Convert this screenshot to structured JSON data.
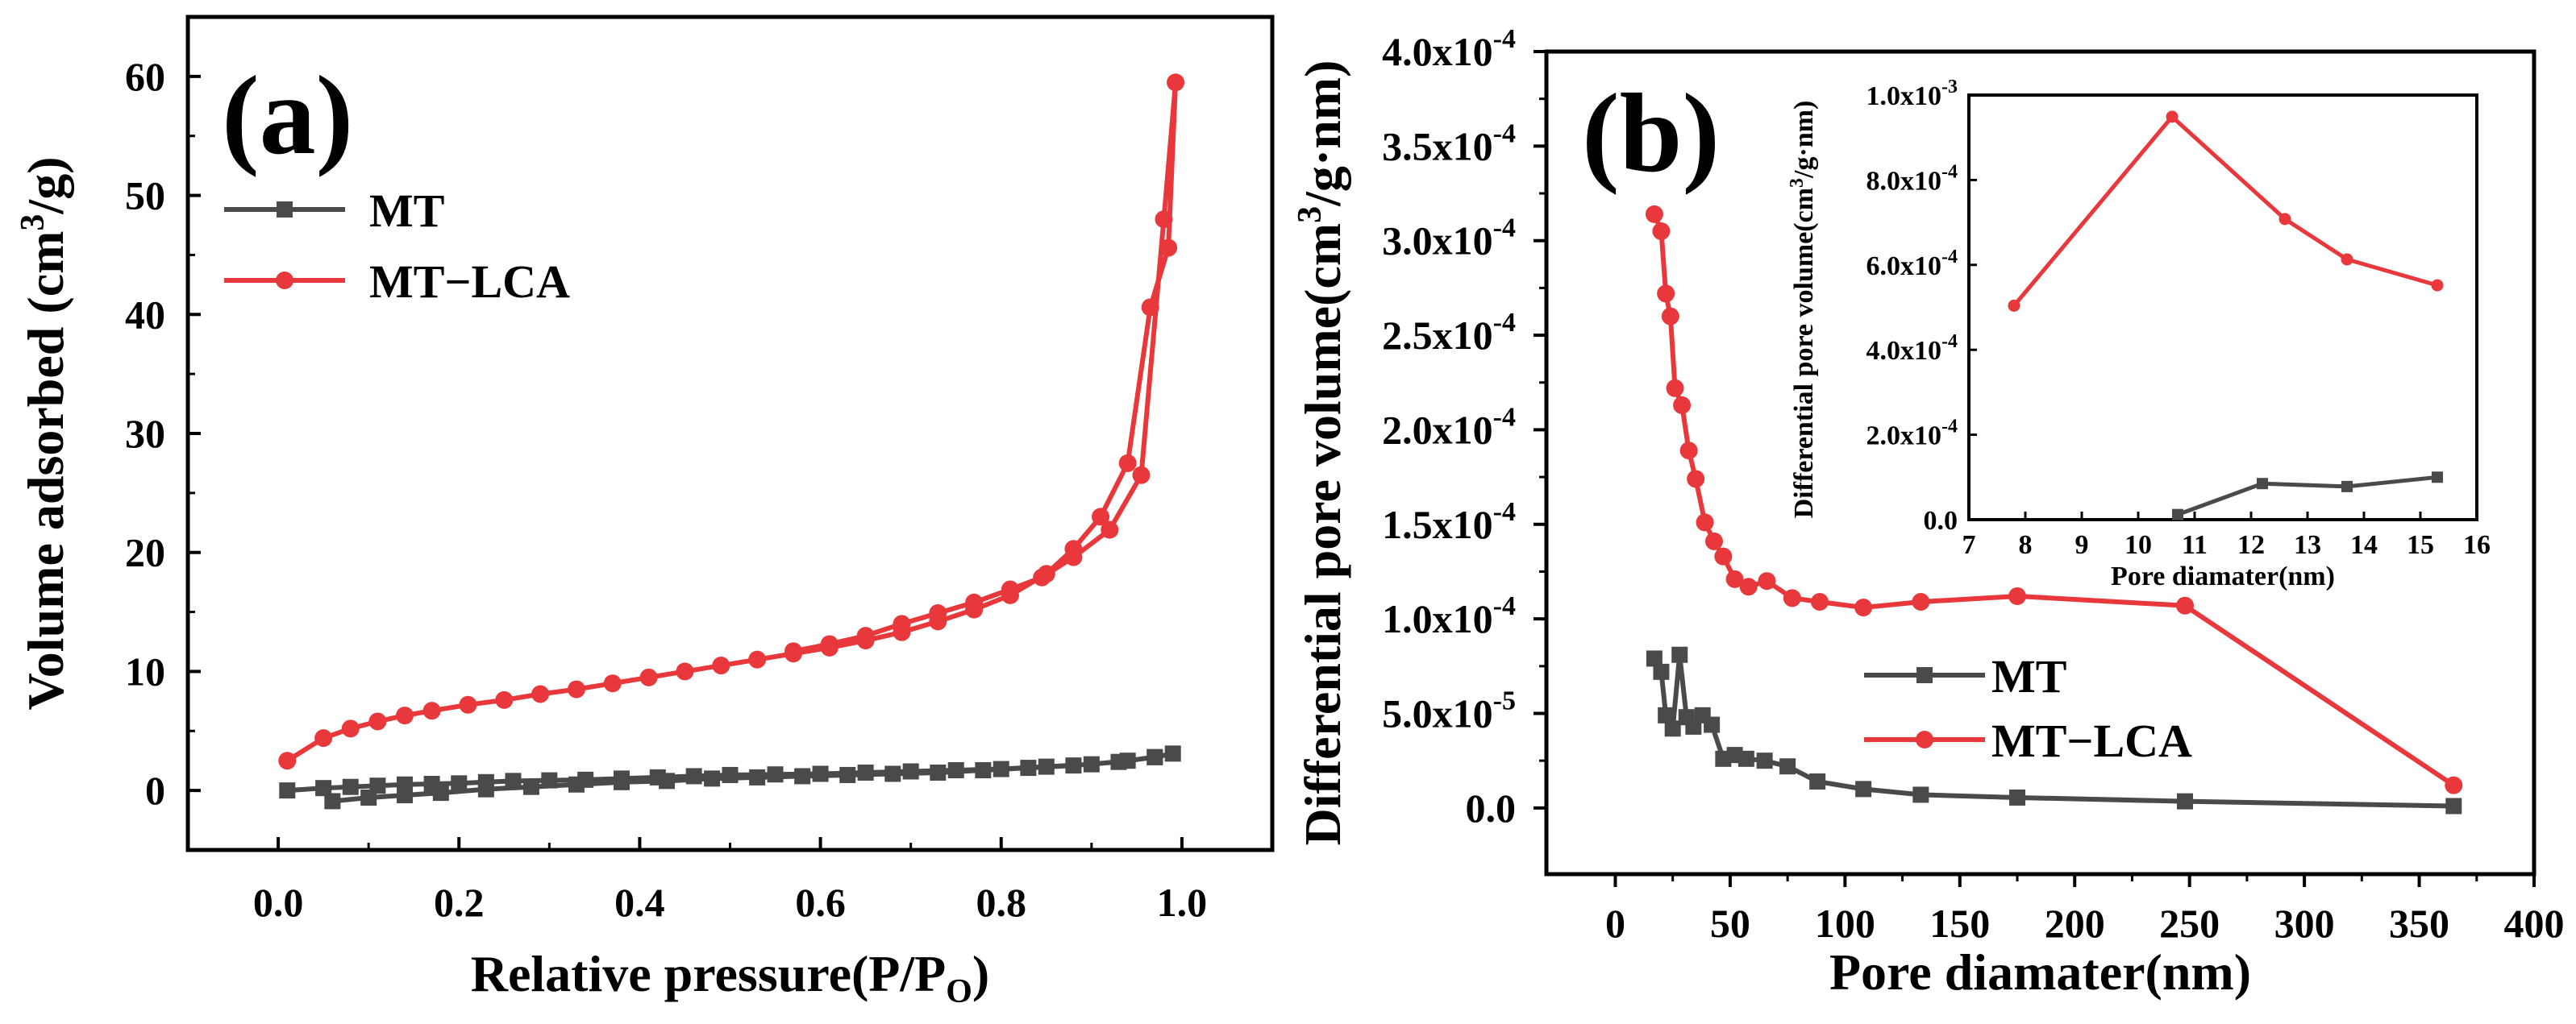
{
  "colors": {
    "mt": "#4a4a4a",
    "mt_lca": "#e8383b",
    "axis": "#000000"
  },
  "chart_data": [
    {
      "type": "line",
      "panel_label": "(a)",
      "xlabel": "Relative pressure(P/P",
      "xlabel_sub": "O",
      "xlabel_end": ")",
      "ylabel": "Volume adsorbed (cm",
      "ylabel_sup": "3",
      "ylabel_end": "/g)",
      "xlim": [
        -0.1,
        1.1
      ],
      "ylim": [
        -5,
        65
      ],
      "xticks": [
        "0.0",
        "0.2",
        "0.4",
        "0.6",
        "0.8",
        "1.0"
      ],
      "yticks": [
        "0",
        "10",
        "20",
        "30",
        "40",
        "50",
        "60"
      ],
      "legend_position": "top-left",
      "series": [
        {
          "name": "MT",
          "marker": "square",
          "color": "#4a4a4a",
          "x": [
            0.01,
            0.05,
            0.08,
            0.11,
            0.14,
            0.17,
            0.2,
            0.23,
            0.26,
            0.3,
            0.34,
            0.38,
            0.42,
            0.46,
            0.5,
            0.55,
            0.6,
            0.65,
            0.7,
            0.75,
            0.8,
            0.85,
            0.9,
            0.94,
            0.97,
            0.99,
            0.97,
            0.93,
            0.88,
            0.83,
            0.78,
            0.73,
            0.68,
            0.63,
            0.58,
            0.53,
            0.48,
            0.43,
            0.38,
            0.33,
            0.28,
            0.23,
            0.18,
            0.14,
            0.1,
            0.06
          ],
          "y": [
            0,
            0.2,
            0.3,
            0.4,
            0.5,
            0.55,
            0.6,
            0.7,
            0.8,
            0.85,
            0.9,
            1.0,
            1.1,
            1.2,
            1.3,
            1.35,
            1.4,
            1.5,
            1.6,
            1.7,
            1.8,
            2.0,
            2.2,
            2.5,
            2.8,
            3.1,
            2.8,
            2.4,
            2.1,
            1.9,
            1.7,
            1.5,
            1.4,
            1.3,
            1.2,
            1.1,
            1.0,
            0.8,
            0.7,
            0.5,
            0.3,
            0.1,
            -0.2,
            -0.4,
            -0.6,
            -0.9
          ]
        },
        {
          "name": "MT−LCA",
          "marker": "circle",
          "color": "#e8383b",
          "x": [
            0.01,
            0.05,
            0.08,
            0.11,
            0.14,
            0.17,
            0.21,
            0.25,
            0.29,
            0.33,
            0.37,
            0.41,
            0.45,
            0.49,
            0.53,
            0.57,
            0.61,
            0.65,
            0.69,
            0.73,
            0.77,
            0.81,
            0.85,
            0.88,
            0.91,
            0.94,
            0.965,
            0.985,
            0.993,
            0.98,
            0.955,
            0.92,
            0.88,
            0.845,
            0.81,
            0.77,
            0.73,
            0.69,
            0.65,
            0.61,
            0.57
          ],
          "y": [
            2.5,
            4.4,
            5.2,
            5.8,
            6.3,
            6.7,
            7.2,
            7.6,
            8.1,
            8.5,
            9.0,
            9.5,
            10.0,
            10.5,
            11.0,
            11.5,
            12.0,
            12.6,
            13.3,
            14.2,
            15.2,
            16.4,
            18.2,
            20.3,
            23.0,
            27.5,
            40.6,
            45.6,
            59.5,
            48.0,
            26.5,
            21.9,
            19.6,
            17.9,
            16.9,
            15.8,
            14.9,
            14.0,
            13.0,
            12.3,
            11.7
          ]
        }
      ]
    },
    {
      "type": "line",
      "panel_label": "(b)",
      "xlabel": "Pore diamater(nm)",
      "ylabel": "Differential pore volume(cm",
      "ylabel_sup": "3",
      "ylabel_end": "/g·nm)",
      "xlim": [
        -30,
        400
      ],
      "ylim": [
        -3.5e-05,
        0.0004
      ],
      "xticks": [
        "0",
        "50",
        "100",
        "150",
        "200",
        "250",
        "300",
        "350",
        "400"
      ],
      "ytick_mantissas": [
        "0.0",
        "5.0x10",
        "1.0x10",
        "1.5x10",
        "2.0x10",
        "2.5x10",
        "3.0x10",
        "3.5x10",
        "4.0x10"
      ],
      "ytick_exponents": [
        "",
        "-5",
        "-4",
        "-4",
        "-4",
        "-4",
        "-4",
        "-4",
        "-4"
      ],
      "legend_position": "lower-middle",
      "series": [
        {
          "name": "MT",
          "marker": "square",
          "color": "#4a4a4a",
          "x": [
            17,
            20,
            22,
            25,
            28,
            31,
            34,
            38,
            42,
            47,
            52,
            57,
            65,
            75,
            88,
            108,
            133,
            175,
            248,
            365
          ],
          "y": [
            7.9e-05,
            7.2e-05,
            4.9e-05,
            4.2e-05,
            8.1e-05,
            4.8e-05,
            4.3e-05,
            4.9e-05,
            4.4e-05,
            2.6e-05,
            2.8e-05,
            2.6e-05,
            2.5e-05,
            2.2e-05,
            1.4e-05,
            1e-05,
            7e-06,
            5.5e-06,
            3.5e-06,
            1e-06
          ]
        },
        {
          "name": "MT−LCA",
          "marker": "circle",
          "color": "#e8383b",
          "x": [
            17,
            20,
            22,
            24,
            26,
            29,
            32,
            35,
            39,
            43,
            47,
            52,
            58,
            66,
            77,
            89,
            108,
            133,
            175,
            248,
            365
          ],
          "y": [
            0.000314,
            0.000305,
            0.000272,
            0.00026,
            0.000222,
            0.000213,
            0.000189,
            0.000174,
            0.000151,
            0.000141,
            0.000133,
            0.000121,
            0.000117,
            0.00012,
            0.000111,
            0.000109,
            0.000106,
            0.000109,
            0.000112,
            0.000107,
            1.2e-05
          ]
        }
      ],
      "inset": {
        "xlabel": "Pore diamater(nm)",
        "ylabel": "Differential pore volume(cm",
        "ylabel_sup": "3",
        "ylabel_end": "/g·nm)",
        "xlim": [
          7,
          16
        ],
        "ylim": [
          0,
          0.001
        ],
        "xticks": [
          "7",
          "8",
          "9",
          "10",
          "11",
          "12",
          "13",
          "14",
          "15",
          "16"
        ],
        "ytick_mantissas": [
          "0.0",
          "2.0x10",
          "4.0x10",
          "6.0x10",
          "8.0x10",
          "1.0x10"
        ],
        "ytick_exponents": [
          "",
          "-4",
          "-4",
          "-4",
          "-4",
          "-3"
        ],
        "series": [
          {
            "name": "MT",
            "marker": "square",
            "color": "#4a4a4a",
            "x": [
              10.7,
              12.2,
              13.7,
              15.3
            ],
            "y": [
              1.2e-05,
              8.5e-05,
              7.8e-05,
              0.0001
            ]
          },
          {
            "name": "MT−LCA",
            "marker": "circle",
            "color": "#e8383b",
            "x": [
              7.8,
              10.6,
              12.6,
              13.7,
              15.3
            ],
            "y": [
              0.000504,
              0.000949,
              0.000708,
              0.000613,
              0.000552
            ]
          }
        ]
      }
    }
  ]
}
